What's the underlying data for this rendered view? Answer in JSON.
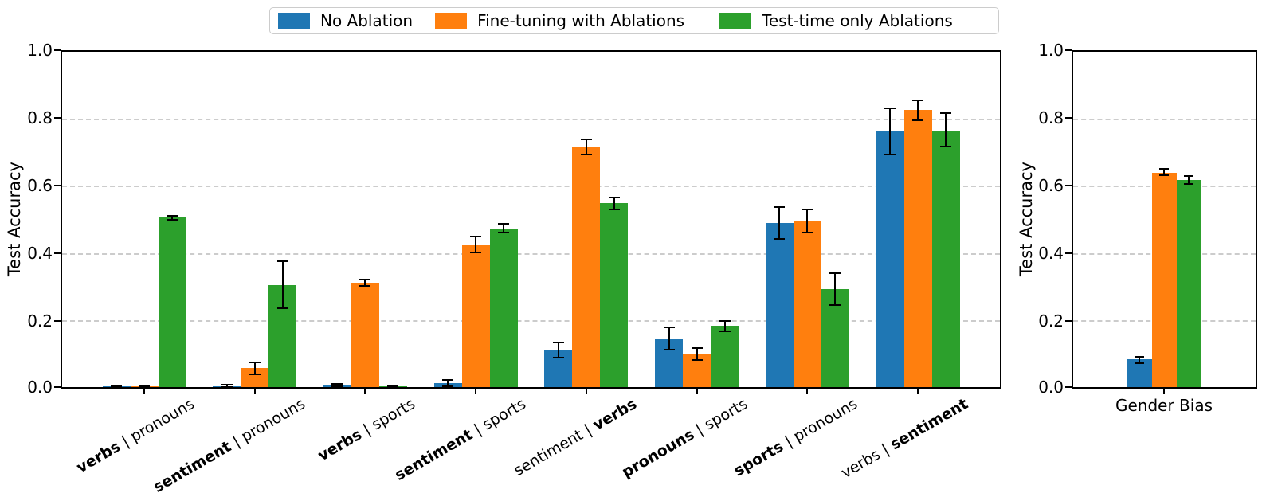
{
  "legend": {
    "items": [
      {
        "label": "No Ablation",
        "color": "#1f77b4"
      },
      {
        "label": "Fine-tuning with Ablations",
        "color": "#ff7f0e"
      },
      {
        "label": "Test-time only Ablations",
        "color": "#2ca02c"
      }
    ]
  },
  "style": {
    "blue": "#1f77b4",
    "orange": "#ff7f0e",
    "green": "#2ca02c",
    "grid_color": "#cccccc",
    "error_bar_color": "#000000",
    "spine_color": "#000000"
  },
  "chart_data": [
    {
      "type": "bar",
      "title": "",
      "ylabel": "Test Accuracy",
      "xlabel": "",
      "ylim": [
        0,
        1
      ],
      "ytick_labels": [
        "0.0",
        "0.2",
        "0.4",
        "0.6",
        "0.8",
        "1.0"
      ],
      "grid": "horizontal dashed at 0.2 intervals",
      "legend_position": "figure top center",
      "categories": [
        {
          "pre": "verbs",
          "sep": " | ",
          "post": "pronouns",
          "bold": "pre"
        },
        {
          "pre": "sentiment",
          "sep": " | ",
          "post": "pronouns",
          "bold": "pre"
        },
        {
          "pre": "verbs",
          "sep": " | ",
          "post": "sports",
          "bold": "pre"
        },
        {
          "pre": "sentiment",
          "sep": " | ",
          "post": "sports",
          "bold": "pre"
        },
        {
          "pre": "sentiment",
          "sep": " | ",
          "post": "verbs",
          "bold": "post"
        },
        {
          "pre": "pronouns",
          "sep": " | ",
          "post": "sports",
          "bold": "pre"
        },
        {
          "pre": "sports",
          "sep": " | ",
          "post": "pronouns",
          "bold": "pre"
        },
        {
          "pre": "verbs",
          "sep": " | ",
          "post": "sentiment",
          "bold": "post"
        }
      ],
      "series": [
        {
          "name": "No Ablation",
          "color": "#1f77b4",
          "values": [
            0.001,
            0.003,
            0.005,
            0.013,
            0.11,
            0.145,
            0.489,
            0.763
          ],
          "errors": [
            0.002,
            0.003,
            0.004,
            0.009,
            0.022,
            0.033,
            0.047,
            0.069
          ]
        },
        {
          "name": "Fine-tuning with Ablations",
          "color": "#ff7f0e",
          "values": [
            0.001,
            0.056,
            0.31,
            0.425,
            0.715,
            0.098,
            0.494,
            0.826
          ],
          "errors": [
            0.002,
            0.018,
            0.01,
            0.024,
            0.023,
            0.018,
            0.035,
            0.03
          ]
        },
        {
          "name": "Test-time only Ablations",
          "color": "#2ca02c",
          "values": [
            0.505,
            0.305,
            0.001,
            0.473,
            0.548,
            0.182,
            0.293,
            0.766
          ],
          "errors": [
            0.006,
            0.07,
            0.002,
            0.013,
            0.018,
            0.016,
            0.047,
            0.05
          ]
        }
      ]
    },
    {
      "type": "bar",
      "title": "",
      "ylabel": "Test Accuracy",
      "xlabel": "",
      "ylim": [
        0,
        1
      ],
      "ytick_labels": [
        "0.0",
        "0.2",
        "0.4",
        "0.6",
        "0.8",
        "1.0"
      ],
      "grid": "horizontal dashed at 0.2 intervals",
      "categories": [
        {
          "pre": "Gender Bias",
          "sep": "",
          "post": "",
          "bold": "none"
        }
      ],
      "series": [
        {
          "name": "No Ablation",
          "color": "#1f77b4",
          "values": [
            0.082
          ],
          "errors": [
            0.009
          ]
        },
        {
          "name": "Fine-tuning with Ablations",
          "color": "#ff7f0e",
          "values": [
            0.64
          ],
          "errors": [
            0.01
          ]
        },
        {
          "name": "Test-time only Ablations",
          "color": "#2ca02c",
          "values": [
            0.618
          ],
          "errors": [
            0.012
          ]
        }
      ]
    }
  ]
}
